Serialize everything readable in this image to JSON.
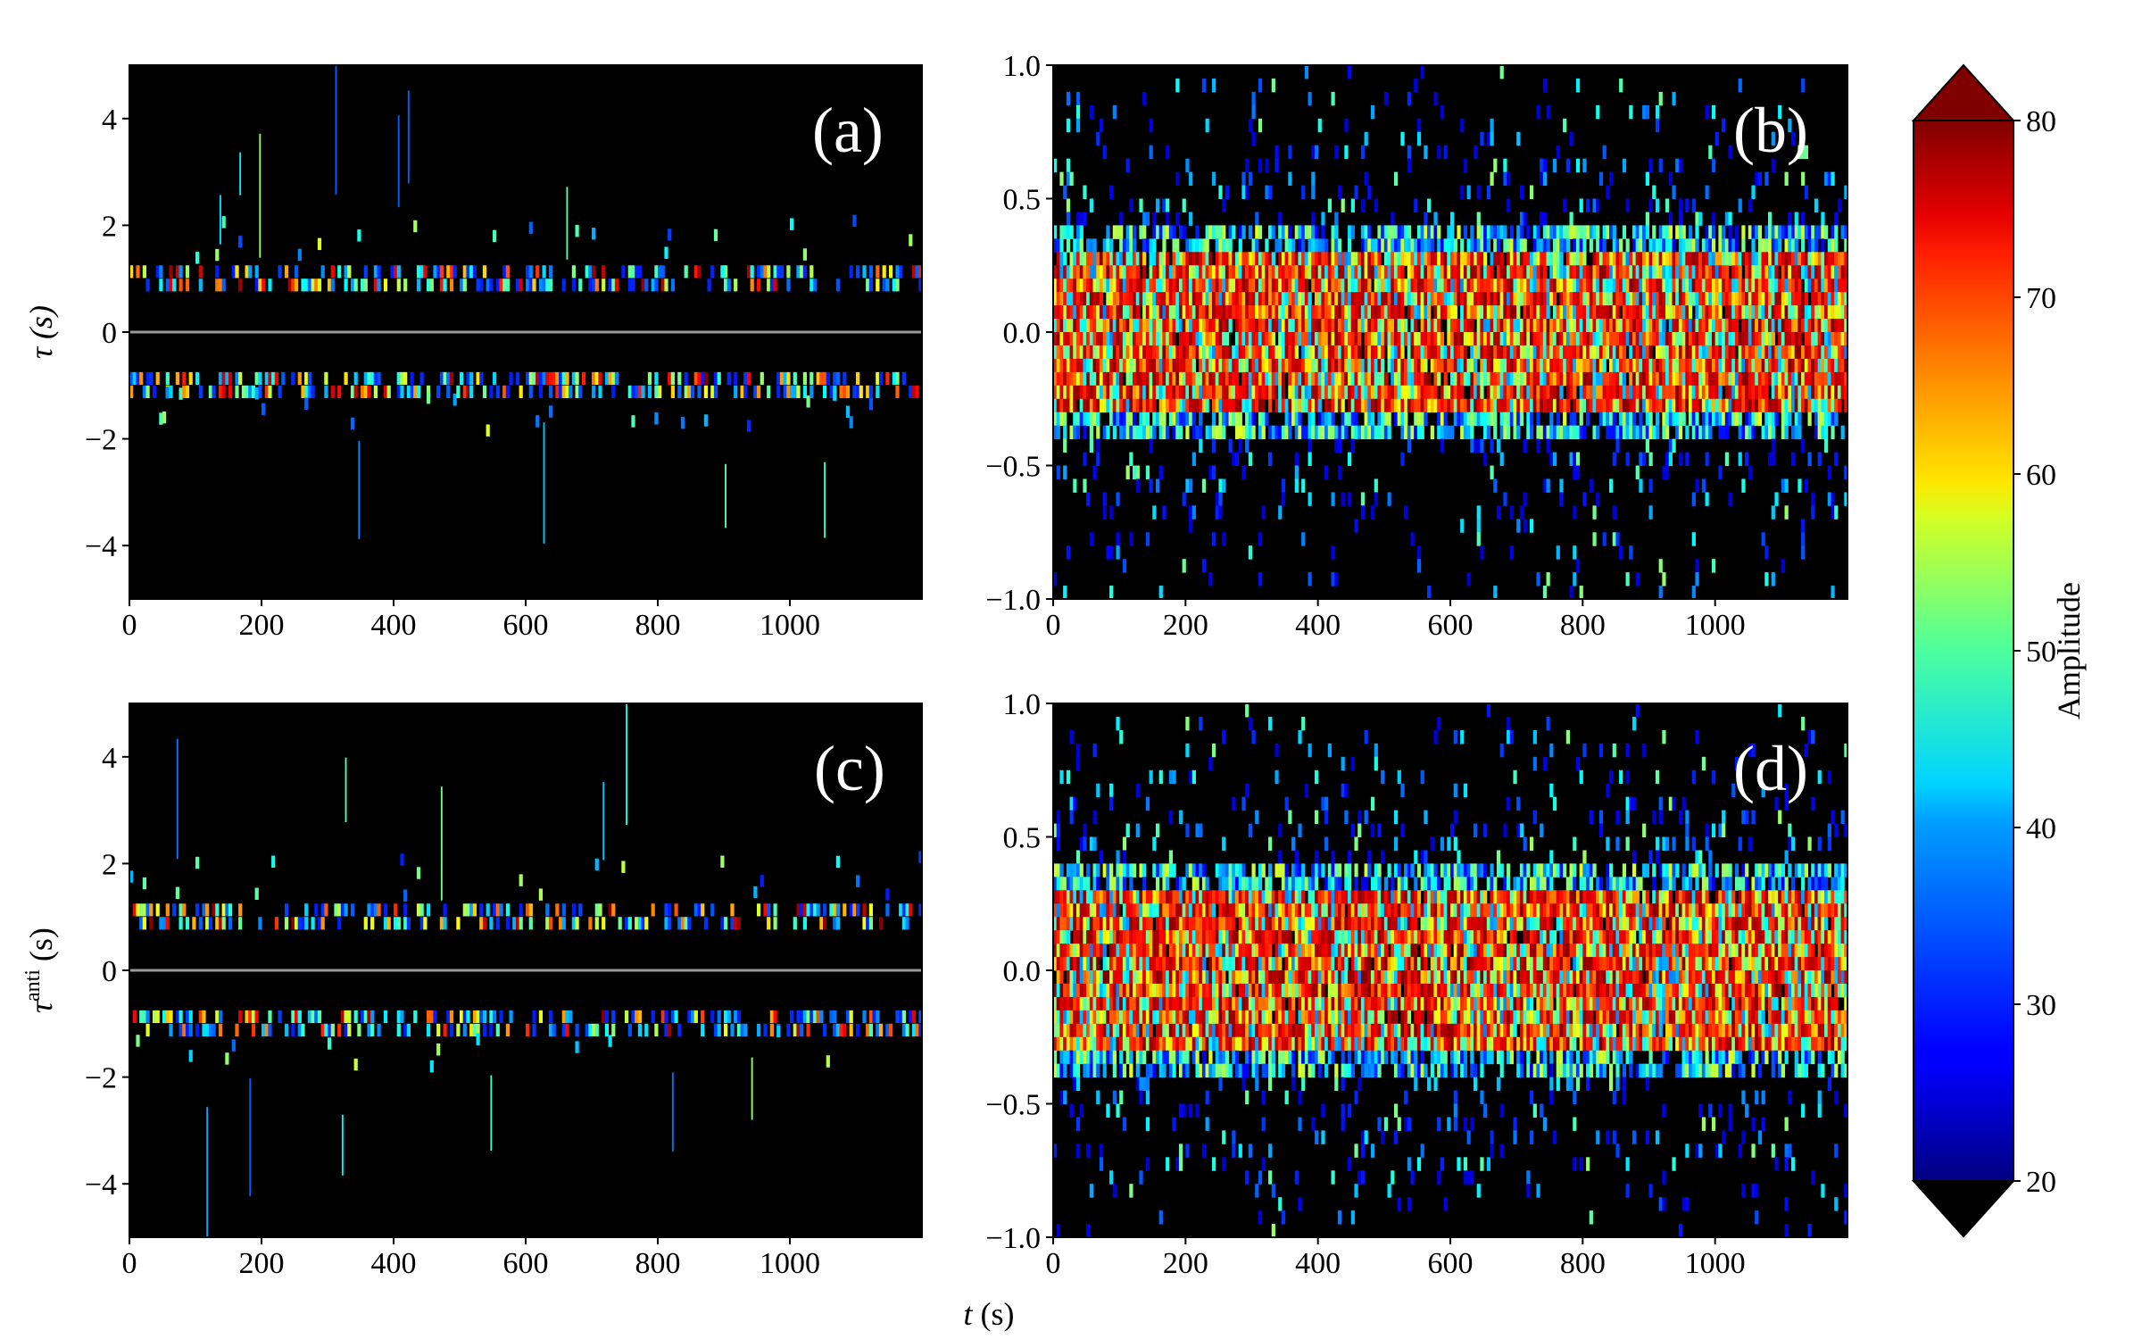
{
  "chart_data": [
    {
      "panel": "(a)",
      "type": "heatmap",
      "x_ticks": [
        "0",
        "200",
        "400",
        "600",
        "800",
        "1000"
      ],
      "y_ticks": [
        "4",
        "2",
        "0",
        "−2",
        "−4"
      ],
      "x_tick_values": [
        0,
        200,
        400,
        600,
        800,
        1000
      ],
      "y_tick_values": [
        4,
        2,
        0,
        -2,
        -4
      ],
      "xlim": [
        0,
        1200
      ],
      "ylim": [
        -5,
        5
      ],
      "ylabel": "τ (s)",
      "background": "#000000",
      "zero_line": true,
      "bands": {
        "upper": [
          0.75,
          1.25
        ],
        "lower": [
          -1.25,
          -0.75
        ]
      },
      "activity": "sparse"
    },
    {
      "panel": "(b)",
      "type": "heatmap",
      "x_ticks": [
        "0",
        "200",
        "400",
        "600",
        "800",
        "1000"
      ],
      "y_ticks": [
        "1.0",
        "0.5",
        "0.0",
        "−0.5",
        "−1.0"
      ],
      "x_tick_values": [
        0,
        200,
        400,
        600,
        800,
        1000
      ],
      "y_tick_values": [
        1.0,
        0.5,
        0.0,
        -0.5,
        -1.0
      ],
      "xlim": [
        0,
        1200
      ],
      "ylim": [
        -1,
        1
      ],
      "background": "#000000",
      "core_band": [
        -0.35,
        0.35
      ],
      "activity": "dense"
    },
    {
      "panel": "(c)",
      "type": "heatmap",
      "x_ticks": [
        "0",
        "200",
        "400",
        "600",
        "800",
        "1000"
      ],
      "y_ticks": [
        "4",
        "2",
        "0",
        "−2",
        "−4"
      ],
      "x_tick_values": [
        0,
        200,
        400,
        600,
        800,
        1000
      ],
      "y_tick_values": [
        4,
        2,
        0,
        -2,
        -4
      ],
      "xlim": [
        0,
        1200
      ],
      "ylim": [
        -5,
        5
      ],
      "ylabel_main": "τ",
      "ylabel_sup": "anti",
      "ylabel_unit": " (s)",
      "background": "#000000",
      "zero_line": true,
      "bands": {
        "upper": [
          0.75,
          1.25
        ],
        "lower": [
          -1.25,
          -0.75
        ]
      },
      "activity": "sparse"
    },
    {
      "panel": "(d)",
      "type": "heatmap",
      "x_ticks": [
        "0",
        "200",
        "400",
        "600",
        "800",
        "1000"
      ],
      "y_ticks": [
        "1.0",
        "0.5",
        "0.0",
        "−0.5",
        "−1.0"
      ],
      "x_tick_values": [
        0,
        200,
        400,
        600,
        800,
        1000
      ],
      "y_tick_values": [
        1.0,
        0.5,
        0.0,
        -0.5,
        -1.0
      ],
      "xlim": [
        0,
        1200
      ],
      "ylim": [
        -1,
        1
      ],
      "background": "#000000",
      "core_band": [
        -0.35,
        0.35
      ],
      "activity": "dense"
    }
  ],
  "shared_xlabel_italic": "t",
  "shared_xlabel_unit": " (s)",
  "colorbar": {
    "label": "Amplitude",
    "ticks": [
      "80",
      "70",
      "60",
      "50",
      "40",
      "30",
      "20"
    ],
    "tick_values": [
      80,
      70,
      60,
      50,
      40,
      30,
      20
    ],
    "range": [
      20,
      80
    ],
    "extend": "both",
    "colormap": "jet",
    "over_color": "#800000",
    "under_color": "#000000"
  }
}
